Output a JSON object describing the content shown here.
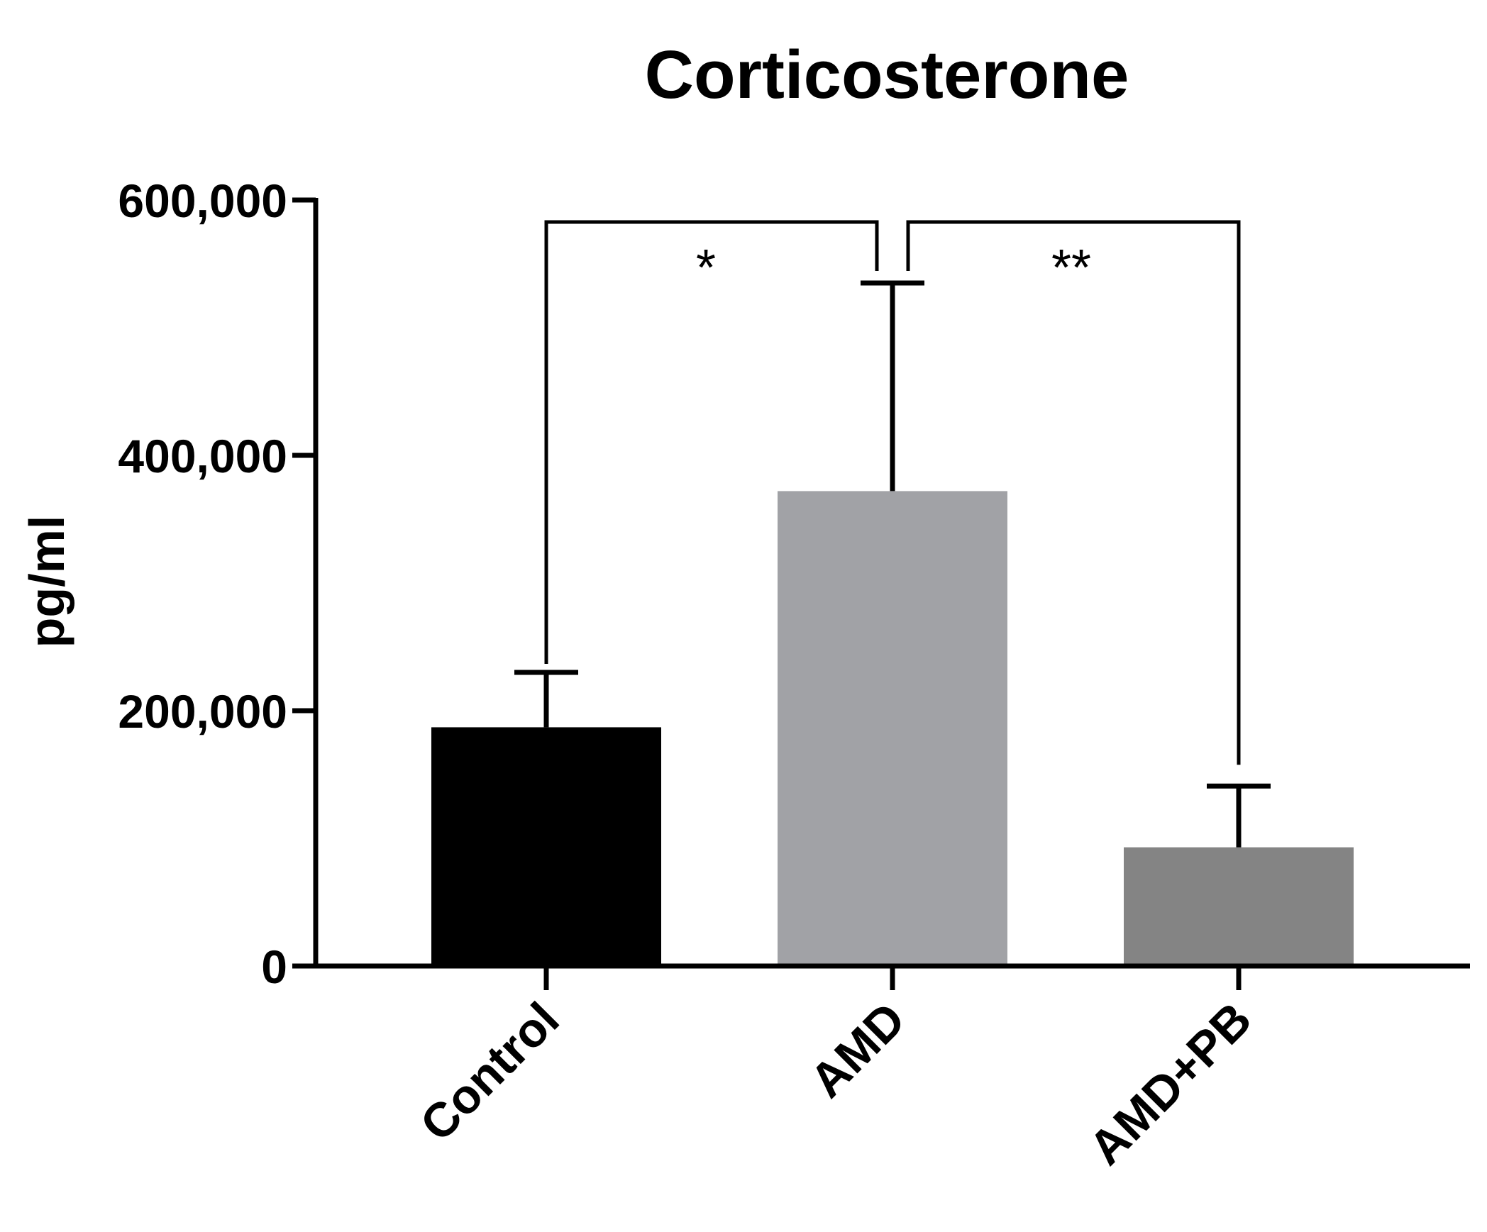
{
  "chart_data": {
    "type": "bar",
    "title": "Corticosterone",
    "xlabel": "",
    "ylabel": "pg/ml",
    "ylim": [
      0,
      600000
    ],
    "y_ticks": [
      0,
      200000,
      400000,
      600000
    ],
    "y_tick_labels": [
      "0",
      "200,000",
      "400,000",
      "600,000"
    ],
    "categories": [
      "Control",
      "AMD",
      "AMD+PB"
    ],
    "values": [
      187000,
      372000,
      93000
    ],
    "errors": [
      43000,
      163000,
      48000
    ],
    "colors": [
      "#000000",
      "#a1a2a6",
      "#848484"
    ],
    "significance": [
      {
        "from": 0,
        "to": 1,
        "label": "*"
      },
      {
        "from": 1,
        "to": 2,
        "label": "**"
      }
    ]
  }
}
